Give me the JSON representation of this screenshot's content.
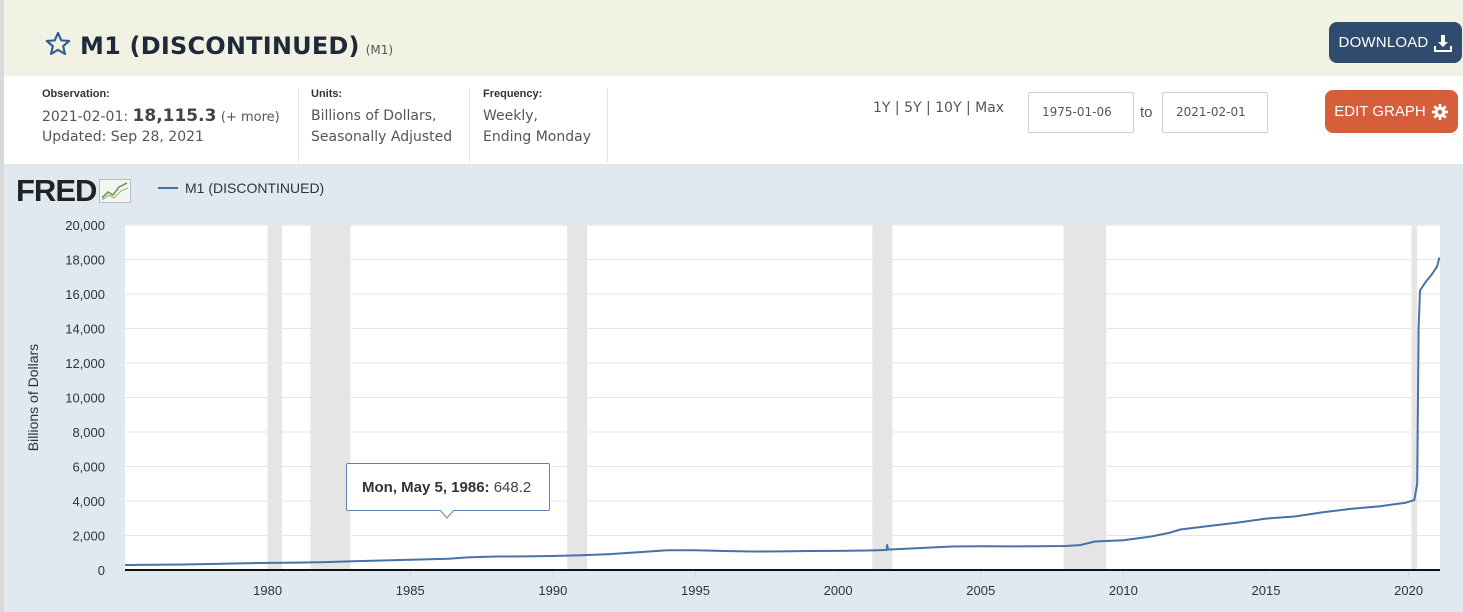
{
  "header": {
    "title": "M1 (DISCONTINUED)",
    "series_id": "(M1)",
    "download_label": "DOWNLOAD"
  },
  "info": {
    "observation_label": "Observation:",
    "observation_date": "2021-02-01:",
    "observation_value": "18,115.3",
    "observation_more": "(+ more)",
    "updated": "Updated: Sep 28, 2021",
    "units_label": "Units:",
    "units_line1": "Billions of Dollars,",
    "units_line2": "Seasonally Adjusted",
    "frequency_label": "Frequency:",
    "frequency_line1": "Weekly,",
    "frequency_line2": "Ending Monday"
  },
  "controls": {
    "range_links": "1Y | 5Y | 10Y | Max",
    "start_date": "1975-01-06",
    "to_label": "to",
    "end_date": "2021-02-01",
    "edit_graph_label": "EDIT GRAPH"
  },
  "logo": {
    "text": "FRED"
  },
  "colors": {
    "series": "#4572a7",
    "recession": "#e5e5e5",
    "header_bg": "#f1f2e3",
    "chart_bg": "#e1e9f0",
    "download_bg": "#2f4b6e",
    "edit_bg": "#d75e3a"
  },
  "tooltip": {
    "date": "Mon, May 5, 1986:",
    "value": "648.2"
  },
  "chart_data": {
    "type": "line",
    "title": "",
    "ylabel": "Billions of Dollars",
    "xlabel": "",
    "legend": "top-left",
    "grid": true,
    "xlim": [
      1975.0,
      2021.1
    ],
    "ylim": [
      0,
      20000
    ],
    "yticks": [
      0,
      2000,
      4000,
      6000,
      8000,
      10000,
      12000,
      14000,
      16000,
      18000,
      20000
    ],
    "ytick_labels": [
      "0",
      "2,000",
      "4,000",
      "6,000",
      "8,000",
      "10,000",
      "12,000",
      "14,000",
      "16,000",
      "18,000",
      "20,000"
    ],
    "xticks": [
      1980,
      1985,
      1990,
      1995,
      2000,
      2005,
      2010,
      2015,
      2020
    ],
    "xtick_labels": [
      "1980",
      "1985",
      "1990",
      "1995",
      "2000",
      "2005",
      "2010",
      "2015",
      "2020"
    ],
    "recessions": [
      [
        1980.0,
        1980.5
      ],
      [
        1981.5,
        1982.9
      ],
      [
        1990.5,
        1991.2
      ],
      [
        2001.2,
        2001.9
      ],
      [
        2007.9,
        2009.4
      ],
      [
        2020.1,
        2020.3
      ]
    ],
    "series": [
      {
        "name": "M1 (DISCONTINUED)",
        "x": [
          1975.0,
          1976,
          1977,
          1978,
          1979,
          1980,
          1981,
          1982,
          1983,
          1984,
          1985,
          1986.34,
          1987,
          1988,
          1989,
          1990,
          1991,
          1992,
          1993,
          1994,
          1995,
          1996,
          1997,
          1998,
          1999,
          2000,
          2001,
          2001.7,
          2001.72,
          2001.75,
          2002,
          2003,
          2004,
          2005,
          2006,
          2007,
          2008,
          2008.5,
          2009,
          2010,
          2011,
          2011.6,
          2012,
          2013,
          2014,
          2015,
          2016,
          2017,
          2018,
          2019,
          2019.9,
          2020.2,
          2020.3,
          2020.35,
          2020.4,
          2020.6,
          2020.8,
          2021.0,
          2021.08
        ],
        "y": [
          290,
          300,
          320,
          350,
          380,
          410,
          430,
          460,
          510,
          550,
          590,
          648.2,
          730,
          780,
          790,
          810,
          850,
          920,
          1030,
          1140,
          1150,
          1100,
          1070,
          1080,
          1100,
          1110,
          1130,
          1160,
          1450,
          1190,
          1200,
          1280,
          1360,
          1380,
          1370,
          1380,
          1390,
          1450,
          1650,
          1730,
          1950,
          2150,
          2350,
          2550,
          2750,
          2980,
          3100,
          3350,
          3550,
          3700,
          3900,
          4050,
          5000,
          14000,
          16200,
          16700,
          17100,
          17600,
          18115.3
        ]
      }
    ]
  }
}
